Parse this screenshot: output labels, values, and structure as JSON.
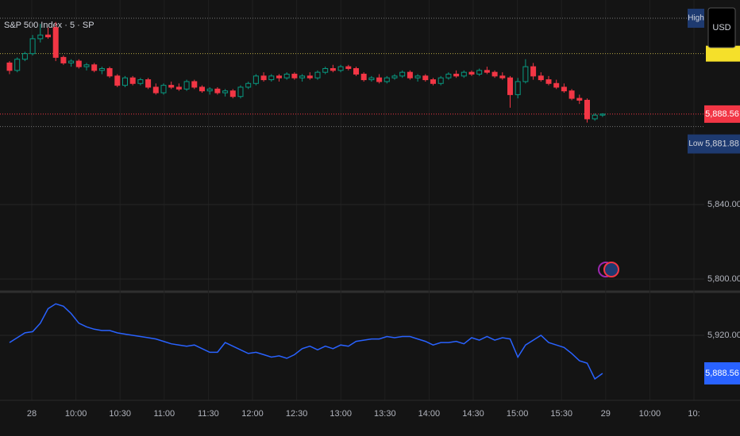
{
  "chart_data": [
    {
      "type": "candlestick",
      "title": "S&P 500 Index · 5 · SP",
      "currency": "USD",
      "up_color": "#089981",
      "down_color": "#f23645",
      "ylim": [
        5793.2,
        5949.8
      ],
      "yticks": [
        {
          "value": 5840,
          "label": "5,840.00"
        },
        {
          "value": 5800,
          "label": "5,800.00"
        }
      ],
      "high": {
        "value": 5940,
        "label": "High"
      },
      "low": {
        "value": 5881.88,
        "label": "5,881.88",
        "tag": "Low"
      },
      "last_price": {
        "value": 5888.56,
        "label": "5,888.56"
      },
      "prev_close": 5921,
      "time_labels": [
        "28",
        "10:00",
        "10:30",
        "11:00",
        "11:30",
        "12:00",
        "12:30",
        "13:00",
        "13:30",
        "14:00",
        "14:30",
        "15:00",
        "15:30",
        "29",
        "10:00",
        "10:"
      ],
      "ohlc": [
        [
          5916,
          5917,
          5910,
          5912
        ],
        [
          5912,
          5919,
          5911,
          5918
        ],
        [
          5918,
          5922,
          5917,
          5921
        ],
        [
          5921,
          5931,
          5920,
          5929
        ],
        [
          5929,
          5937,
          5927,
          5931
        ],
        [
          5931,
          5935,
          5929,
          5930
        ],
        [
          5935,
          5938,
          5917,
          5919
        ],
        [
          5919,
          5920,
          5915,
          5916
        ],
        [
          5916,
          5918,
          5914,
          5917
        ],
        [
          5917,
          5918,
          5913,
          5914
        ],
        [
          5914,
          5916,
          5912,
          5915
        ],
        [
          5915,
          5916,
          5911,
          5912
        ],
        [
          5912,
          5914,
          5910,
          5913
        ],
        [
          5913,
          5914,
          5908,
          5909
        ],
        [
          5909,
          5910,
          5903,
          5904
        ],
        [
          5904,
          5909,
          5903,
          5908
        ],
        [
          5908,
          5909,
          5904,
          5905
        ],
        [
          5905,
          5908,
          5904,
          5907
        ],
        [
          5907,
          5908,
          5902,
          5903
        ],
        [
          5903,
          5905,
          5899,
          5900
        ],
        [
          5900,
          5905,
          5899,
          5904
        ],
        [
          5904,
          5906,
          5902,
          5903
        ],
        [
          5903,
          5905,
          5901,
          5902
        ],
        [
          5902,
          5907,
          5901,
          5906
        ],
        [
          5906,
          5907,
          5902,
          5903
        ],
        [
          5903,
          5904,
          5900,
          5901
        ],
        [
          5901,
          5903,
          5899,
          5902
        ],
        [
          5902,
          5903,
          5899,
          5900
        ],
        [
          5900,
          5902,
          5898,
          5901
        ],
        [
          5901,
          5902,
          5897,
          5898
        ],
        [
          5898,
          5904,
          5897,
          5903
        ],
        [
          5903,
          5906,
          5902,
          5905
        ],
        [
          5905,
          5910,
          5904,
          5909
        ],
        [
          5909,
          5911,
          5906,
          5907
        ],
        [
          5907,
          5910,
          5906,
          5909
        ],
        [
          5909,
          5910,
          5906,
          5908
        ],
        [
          5908,
          5911,
          5907,
          5910
        ],
        [
          5910,
          5911,
          5907,
          5908
        ],
        [
          5908,
          5910,
          5906,
          5909
        ],
        [
          5909,
          5911,
          5907,
          5908
        ],
        [
          5908,
          5912,
          5907,
          5911
        ],
        [
          5911,
          5914,
          5910,
          5913
        ],
        [
          5913,
          5915,
          5911,
          5912
        ],
        [
          5912,
          5915,
          5911,
          5914
        ],
        [
          5914,
          5915,
          5912,
          5913
        ],
        [
          5913,
          5914,
          5909,
          5910
        ],
        [
          5910,
          5911,
          5906,
          5907
        ],
        [
          5907,
          5909,
          5906,
          5908
        ],
        [
          5908,
          5910,
          5905,
          5906
        ],
        [
          5906,
          5909,
          5905,
          5908
        ],
        [
          5908,
          5910,
          5907,
          5909
        ],
        [
          5909,
          5912,
          5908,
          5911
        ],
        [
          5911,
          5912,
          5907,
          5908
        ],
        [
          5908,
          5910,
          5906,
          5909
        ],
        [
          5909,
          5910,
          5906,
          5907
        ],
        [
          5907,
          5908,
          5904,
          5905
        ],
        [
          5905,
          5909,
          5904,
          5908
        ],
        [
          5908,
          5911,
          5907,
          5910
        ],
        [
          5910,
          5912,
          5908,
          5909
        ],
        [
          5909,
          5912,
          5908,
          5911
        ],
        [
          5911,
          5912,
          5909,
          5910
        ],
        [
          5910,
          5913,
          5909,
          5912
        ],
        [
          5912,
          5914,
          5910,
          5911
        ],
        [
          5911,
          5912,
          5908,
          5909
        ],
        [
          5909,
          5911,
          5907,
          5908
        ],
        [
          5908,
          5909,
          5892,
          5899
        ],
        [
          5899,
          5908,
          5897,
          5906
        ],
        [
          5906,
          5918,
          5905,
          5914
        ],
        [
          5914,
          5916,
          5907,
          5909
        ],
        [
          5909,
          5911,
          5906,
          5907
        ],
        [
          5907,
          5909,
          5904,
          5905
        ],
        [
          5905,
          5907,
          5902,
          5903
        ],
        [
          5903,
          5905,
          5900,
          5901
        ],
        [
          5901,
          5902,
          5896,
          5897
        ],
        [
          5897,
          5899,
          5894,
          5896
        ],
        [
          5896,
          5897,
          5884,
          5886
        ],
        [
          5886,
          5889,
          5885,
          5888
        ],
        [
          5888,
          5889,
          5887,
          5888.56
        ]
      ]
    },
    {
      "type": "line",
      "color": "#2962ff",
      "y2lim": [
        5866.3,
        5956.0
      ],
      "y2ticks": [
        {
          "value": 5920,
          "label": "5,920.00"
        }
      ],
      "last_label": "5,888.56",
      "values": [
        5914,
        5918,
        5922,
        5923,
        5930,
        5942,
        5946,
        5944,
        5938,
        5930,
        5927,
        5925,
        5924,
        5924,
        5922,
        5921,
        5920,
        5919,
        5918,
        5917,
        5915,
        5913,
        5912,
        5911,
        5912,
        5909,
        5906,
        5906,
        5914,
        5911,
        5908,
        5905,
        5906,
        5904,
        5902,
        5903,
        5901,
        5904,
        5909,
        5911,
        5908,
        5911,
        5909,
        5912,
        5911,
        5915,
        5916,
        5917,
        5917,
        5919,
        5918,
        5919,
        5919,
        5917,
        5915,
        5912,
        5914,
        5914,
        5915,
        5913,
        5918,
        5916,
        5919,
        5916,
        5918,
        5917,
        5902,
        5912,
        5916,
        5920,
        5914,
        5912,
        5910,
        5905,
        5899,
        5897,
        5884,
        5888.56
      ]
    }
  ]
}
